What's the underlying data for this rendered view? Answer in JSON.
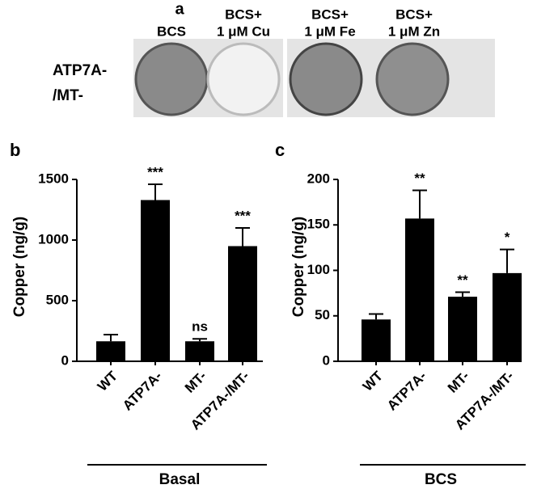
{
  "panel_a": {
    "label": "a",
    "row_label": [
      "ATP7A-",
      "/MT-"
    ],
    "columns": [
      [
        "BCS"
      ],
      [
        "BCS+",
        "1 μM Cu"
      ],
      [
        "BCS+",
        "1 μM Fe"
      ],
      [
        "BCS+",
        "1 μM Zn"
      ]
    ]
  },
  "chart_data": [
    {
      "type": "bar",
      "panel_label": "b",
      "y_label": "Copper (ng/g)",
      "group_label": "Basal",
      "categories": [
        "WT",
        "ATP7A-",
        "MT-",
        "ATP7A-/MT-"
      ],
      "values": [
        165,
        1330,
        165,
        950
      ],
      "errors": [
        55,
        130,
        20,
        150
      ],
      "annotations": [
        null,
        "***",
        "ns",
        "***"
      ],
      "color": "#000000",
      "ylim": [
        0,
        1500
      ],
      "yticks": [
        0,
        500,
        1000,
        1500
      ]
    },
    {
      "type": "bar",
      "panel_label": "c",
      "y_label": "Copper (ng/g)",
      "group_label": "BCS",
      "categories": [
        "WT",
        "ATP7A-",
        "MT-",
        "ATP7A-/MT-"
      ],
      "values": [
        46,
        157,
        71,
        97
      ],
      "errors": [
        6,
        31,
        5,
        26
      ],
      "annotations": [
        null,
        "**",
        "**",
        "*"
      ],
      "color": "#000000",
      "ylim": [
        0,
        200
      ],
      "yticks": [
        0,
        50,
        100,
        150,
        200
      ]
    }
  ]
}
